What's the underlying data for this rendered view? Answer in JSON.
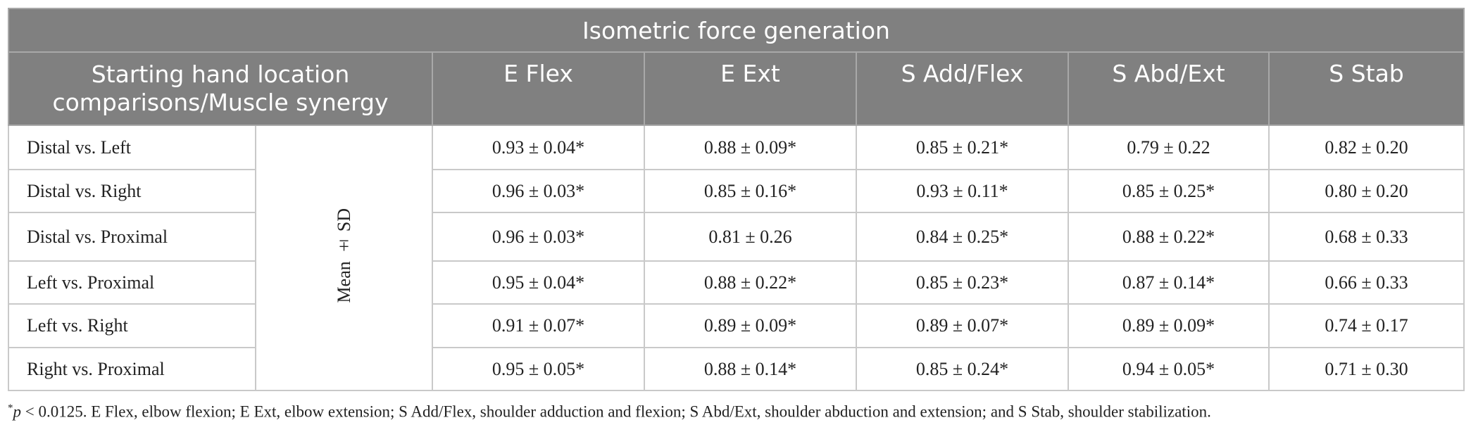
{
  "table": {
    "title": "Isometric force generation",
    "header": [
      "Starting hand location comparisons/Muscle synergy",
      "E Flex",
      "E Ext",
      "S Add/Flex",
      "S Abd/Ext",
      "S Stab"
    ],
    "measure": "Mean ± SD",
    "rows": [
      [
        "Distal vs. Left",
        "0.93 ± 0.04*",
        "0.88 ± 0.09*",
        "0.85 ± 0.21*",
        "0.79 ± 0.22",
        "0.82 ± 0.20"
      ],
      [
        "Distal vs. Right",
        "0.96 ± 0.03*",
        "0.85 ± 0.16*",
        "0.93 ± 0.11*",
        "0.85 ± 0.25*",
        "0.80 ± 0.20"
      ],
      [
        "Distal vs. Proximal",
        "0.96 ± 0.03*",
        "0.81 ± 0.26",
        "0.84 ± 0.25*",
        "0.88 ± 0.22*",
        "0.68 ± 0.33"
      ],
      [
        "Left vs. Proximal",
        "0.95 ± 0.04*",
        "0.88 ± 0.22*",
        "0.85 ± 0.23*",
        "0.87 ± 0.14*",
        "0.66 ± 0.33"
      ],
      [
        "Left vs. Right",
        "0.91 ± 0.07*",
        "0.89 ± 0.09*",
        "0.89 ± 0.07*",
        "0.89 ± 0.09*",
        "0.74 ± 0.17"
      ],
      [
        "Right vs. Proximal",
        "0.95 ± 0.05*",
        "0.88 ± 0.14*",
        "0.85 ± 0.24*",
        "0.94 ± 0.05*",
        "0.71 ± 0.30"
      ]
    ]
  },
  "footnote": {
    "marker": "*",
    "variable": "p",
    "text": " < 0.0125. E Flex, elbow flexion; E Ext, elbow extension; S Add/Flex, shoulder adduction and flexion; S Abd/Ext, shoulder abduction and extension; and S Stab, shoulder stabilization."
  }
}
